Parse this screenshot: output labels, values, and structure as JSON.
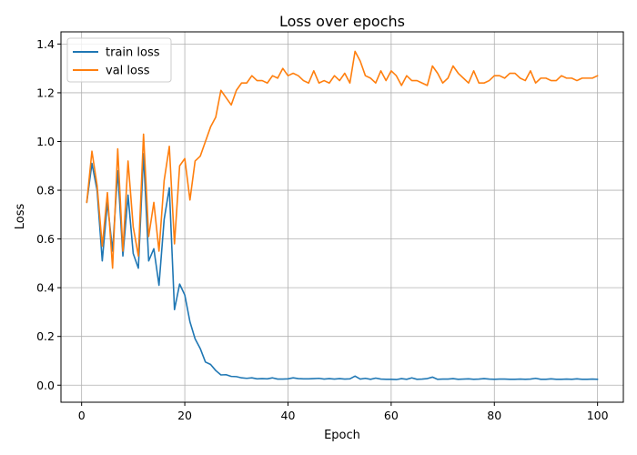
{
  "chart_data": {
    "type": "line",
    "title": "Loss over epochs",
    "xlabel": "Epoch",
    "ylabel": "Loss",
    "xlim": [
      -4,
      105
    ],
    "ylim": [
      -0.07,
      1.45
    ],
    "xticks": [
      0,
      20,
      40,
      60,
      80,
      100
    ],
    "yticks": [
      0.0,
      0.2,
      0.4,
      0.6,
      0.8,
      1.0,
      1.2,
      1.4
    ],
    "grid": true,
    "legend_position": "top-left",
    "series": [
      {
        "name": "train loss",
        "color": "#1f77b4",
        "x": [
          1,
          2,
          3,
          4,
          5,
          6,
          7,
          8,
          9,
          10,
          11,
          12,
          13,
          14,
          15,
          16,
          17,
          18,
          19,
          20,
          21,
          22,
          23,
          24,
          25,
          26,
          27,
          28,
          29,
          30,
          31,
          32,
          33,
          34,
          35,
          36,
          37,
          38,
          39,
          40,
          41,
          42,
          43,
          44,
          45,
          46,
          47,
          48,
          49,
          50,
          51,
          52,
          53,
          54,
          55,
          56,
          57,
          58,
          59,
          60,
          61,
          62,
          63,
          64,
          65,
          66,
          67,
          68,
          69,
          70,
          71,
          72,
          73,
          74,
          75,
          76,
          77,
          78,
          79,
          80,
          81,
          82,
          83,
          84,
          85,
          86,
          87,
          88,
          89,
          90,
          91,
          92,
          93,
          94,
          95,
          96,
          97,
          98,
          99,
          100
        ],
        "values": [
          0.75,
          0.91,
          0.8,
          0.51,
          0.75,
          0.55,
          0.88,
          0.53,
          0.78,
          0.54,
          0.48,
          0.95,
          0.51,
          0.56,
          0.41,
          0.68,
          0.81,
          0.31,
          0.415,
          0.37,
          0.26,
          0.19,
          0.15,
          0.095,
          0.085,
          0.06,
          0.042,
          0.043,
          0.036,
          0.035,
          0.03,
          0.028,
          0.03,
          0.026,
          0.027,
          0.026,
          0.03,
          0.025,
          0.025,
          0.026,
          0.03,
          0.027,
          0.026,
          0.026,
          0.027,
          0.028,
          0.025,
          0.027,
          0.025,
          0.027,
          0.025,
          0.026,
          0.037,
          0.025,
          0.028,
          0.024,
          0.029,
          0.025,
          0.024,
          0.024,
          0.023,
          0.027,
          0.024,
          0.03,
          0.024,
          0.025,
          0.027,
          0.033,
          0.024,
          0.025,
          0.025,
          0.027,
          0.024,
          0.025,
          0.026,
          0.024,
          0.025,
          0.027,
          0.025,
          0.024,
          0.025,
          0.025,
          0.024,
          0.024,
          0.025,
          0.024,
          0.025,
          0.028,
          0.024,
          0.024,
          0.026,
          0.024,
          0.024,
          0.025,
          0.024,
          0.026,
          0.024,
          0.024,
          0.025,
          0.024
        ]
      },
      {
        "name": "val loss",
        "color": "#ff7f0e",
        "x": [
          1,
          2,
          3,
          4,
          5,
          6,
          7,
          8,
          9,
          10,
          11,
          12,
          13,
          14,
          15,
          16,
          17,
          18,
          19,
          20,
          21,
          22,
          23,
          24,
          25,
          26,
          27,
          28,
          29,
          30,
          31,
          32,
          33,
          34,
          35,
          36,
          37,
          38,
          39,
          40,
          41,
          42,
          43,
          44,
          45,
          46,
          47,
          48,
          49,
          50,
          51,
          52,
          53,
          54,
          55,
          56,
          57,
          58,
          59,
          60,
          61,
          62,
          63,
          64,
          65,
          66,
          67,
          68,
          69,
          70,
          71,
          72,
          73,
          74,
          75,
          76,
          77,
          78,
          79,
          80,
          81,
          82,
          83,
          84,
          85,
          86,
          87,
          88,
          89,
          90,
          91,
          92,
          93,
          94,
          95,
          96,
          97,
          98,
          99,
          100
        ],
        "values": [
          0.75,
          0.96,
          0.82,
          0.57,
          0.79,
          0.48,
          0.97,
          0.55,
          0.92,
          0.65,
          0.53,
          1.03,
          0.61,
          0.75,
          0.55,
          0.84,
          0.98,
          0.58,
          0.9,
          0.93,
          0.76,
          0.92,
          0.94,
          1.0,
          1.06,
          1.1,
          1.21,
          1.18,
          1.15,
          1.21,
          1.24,
          1.24,
          1.27,
          1.25,
          1.25,
          1.24,
          1.27,
          1.26,
          1.3,
          1.27,
          1.28,
          1.27,
          1.25,
          1.24,
          1.29,
          1.24,
          1.25,
          1.24,
          1.27,
          1.25,
          1.28,
          1.24,
          1.37,
          1.33,
          1.27,
          1.26,
          1.24,
          1.29,
          1.25,
          1.29,
          1.27,
          1.23,
          1.27,
          1.25,
          1.25,
          1.24,
          1.23,
          1.31,
          1.28,
          1.24,
          1.26,
          1.31,
          1.28,
          1.26,
          1.24,
          1.29,
          1.24,
          1.24,
          1.25,
          1.27,
          1.27,
          1.26,
          1.28,
          1.28,
          1.26,
          1.25,
          1.29,
          1.24,
          1.26,
          1.26,
          1.25,
          1.25,
          1.27,
          1.26,
          1.26,
          1.25,
          1.26,
          1.26,
          1.26,
          1.27
        ]
      }
    ]
  }
}
